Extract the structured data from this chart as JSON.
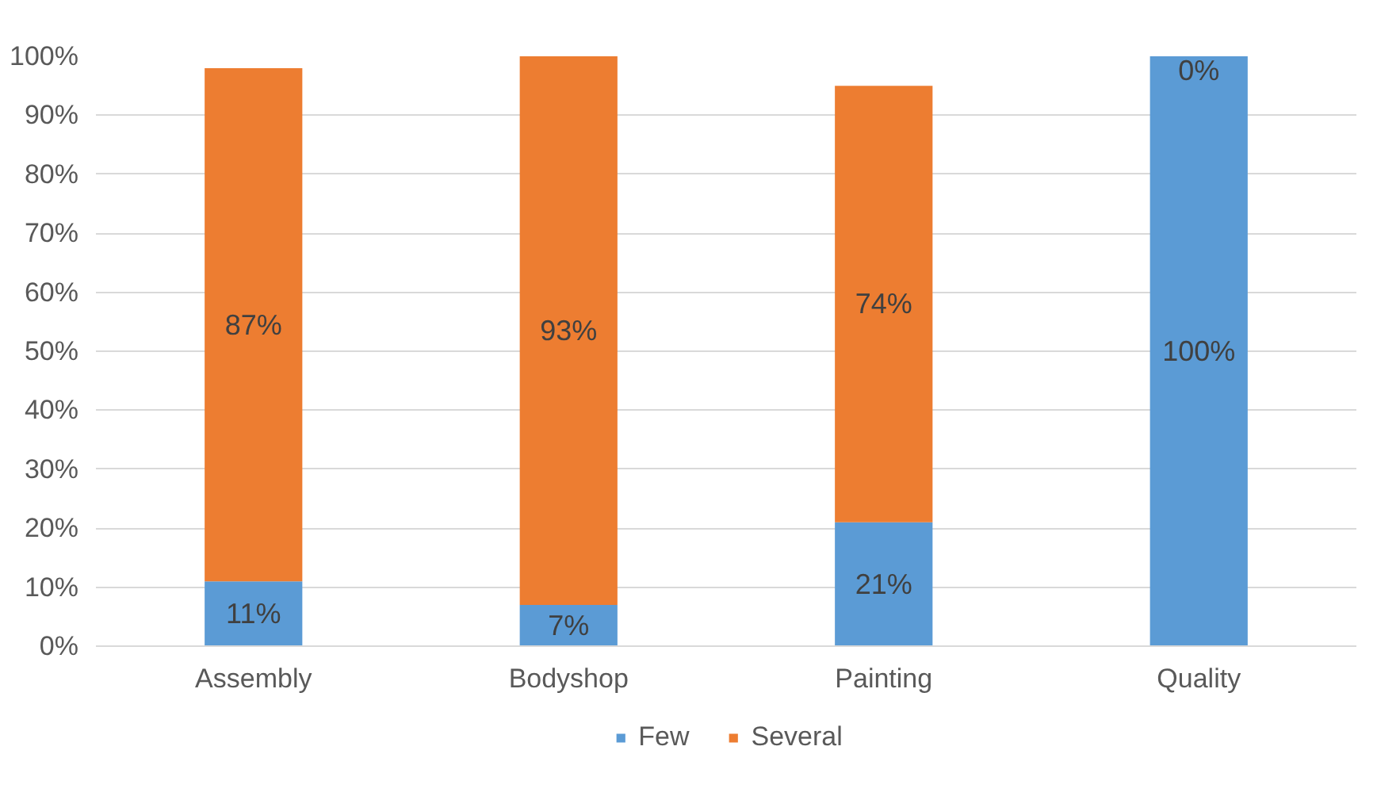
{
  "chart_data": {
    "type": "bar",
    "stacked": true,
    "categories": [
      "Assembly",
      "Bodyshop",
      "Painting",
      "Quality"
    ],
    "series": [
      {
        "name": "Few",
        "color": "#5b9bd5",
        "values": [
          11,
          7,
          21,
          100
        ],
        "value_labels": [
          "11%",
          "7%",
          "21%",
          "100%"
        ]
      },
      {
        "name": "Several",
        "color": "#ed7d31",
        "values": [
          87,
          93,
          74,
          0
        ],
        "value_labels": [
          "87%",
          "93%",
          "74%",
          "0%"
        ]
      }
    ],
    "ylim": [
      0,
      100
    ],
    "yticks": [
      {
        "value": 0,
        "label": "0%"
      },
      {
        "value": 10,
        "label": "10%"
      },
      {
        "value": 20,
        "label": "20%"
      },
      {
        "value": 30,
        "label": "30%"
      },
      {
        "value": 40,
        "label": "40%"
      },
      {
        "value": 50,
        "label": "50%"
      },
      {
        "value": 60,
        "label": "60%"
      },
      {
        "value": 70,
        "label": "70%"
      },
      {
        "value": 80,
        "label": "80%"
      },
      {
        "value": 90,
        "label": "90%"
      },
      {
        "value": 100,
        "label": "100%"
      }
    ],
    "grid": "y",
    "legend": "bottom"
  }
}
